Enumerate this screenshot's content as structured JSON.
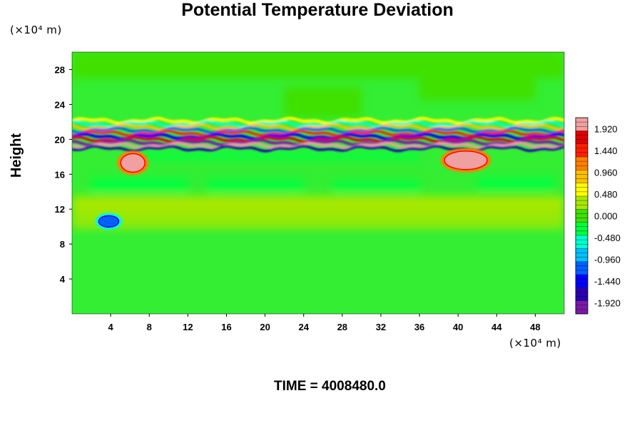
{
  "title": "Potential Temperature Deviation",
  "y_unit_label": "(×10⁴ m)",
  "x_unit_label": "(×10⁴ m)",
  "ylabel": "Height",
  "footer": {
    "label": "TIME = ",
    "value": "4008480.0"
  },
  "chart_data": {
    "type": "heatmap",
    "title": "Potential Temperature Deviation",
    "xlabel": "",
    "ylabel": "Height",
    "xlim": [
      0,
      51
    ],
    "ylim": [
      0,
      30
    ],
    "x_ticks": [
      4,
      8,
      12,
      16,
      20,
      24,
      28,
      32,
      36,
      40,
      44,
      48
    ],
    "y_ticks": [
      4,
      8,
      12,
      16,
      20,
      24,
      28
    ],
    "colorbar": {
      "vmin": -2.16,
      "vmax": 2.16,
      "tick_values": [
        1.92,
        1.44,
        0.96,
        0.48,
        0.0,
        -0.48,
        -0.96,
        -1.44,
        -1.92
      ],
      "tick_labels": [
        "1.920",
        "1.440",
        "0.960",
        "0.480",
        "0.000",
        "-0.480",
        "-0.960",
        "-1.440",
        "-1.920"
      ],
      "colors_low_to_high": [
        "#7a1aa8",
        "#2a00b0",
        "#0000ff",
        "#0060ff",
        "#00c0ff",
        "#00ffd0",
        "#00ff40",
        "#3fe000",
        "#a8e800",
        "#ffff00",
        "#ffc000",
        "#ff8000",
        "#ff2000",
        "#e00000",
        "#f0a0a0"
      ]
    },
    "features": [
      {
        "name": "oscillating band",
        "x_range": [
          0,
          51
        ],
        "y_range": [
          19,
          22.5
        ]
      },
      {
        "name": "warm anomaly left",
        "x_center": 6.3,
        "y_center": 17.3,
        "value": 1.9
      },
      {
        "name": "warm anomaly right",
        "x_center": 40.8,
        "y_center": 17.6,
        "value": 1.9
      },
      {
        "name": "cold anomaly",
        "x_center": 3.8,
        "y_center": 10.6,
        "value": -1.2
      }
    ],
    "background_value": 0.0,
    "time": "4008480.0"
  },
  "colors": {
    "field_background": "#33ee33"
  }
}
